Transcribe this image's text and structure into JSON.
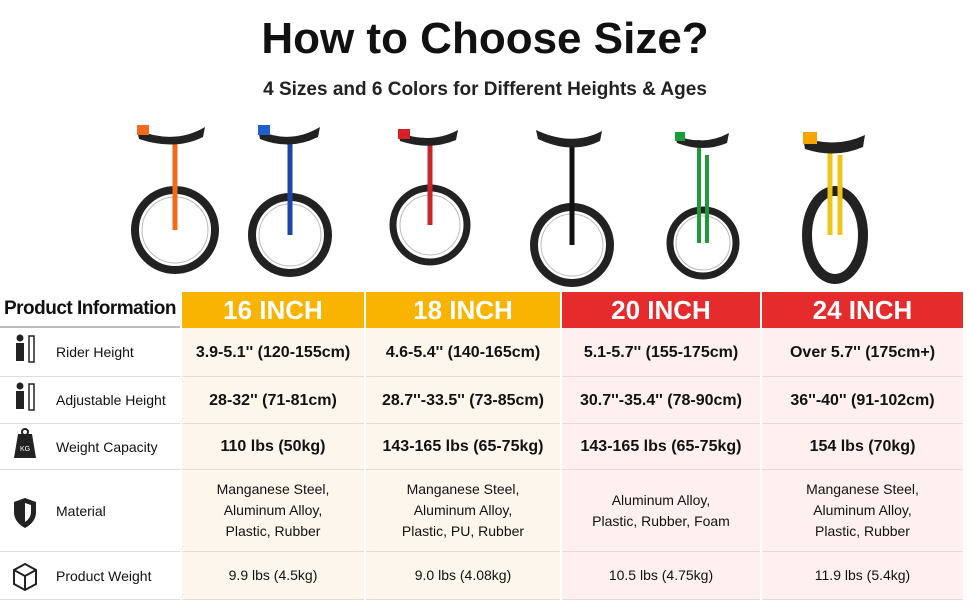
{
  "header": {
    "title": "How to Choose Size?",
    "subtitle": "4 Sizes and 6 Colors for Different Heights & Ages"
  },
  "table": {
    "columns": [
      "Product Information",
      "16 INCH",
      "18 INCH",
      "20 INCH",
      "24 INCH"
    ],
    "rows": [
      {
        "label": "Rider Height",
        "cells": [
          [
            "3.9-5.1'' (120-155cm)"
          ],
          [
            "4.6-5.4'' (140-165cm)"
          ],
          [
            "5.1-5.7'' (155-175cm)"
          ],
          [
            "Over 5.7'' (175cm+)"
          ]
        ]
      },
      {
        "label": "Adjustable Height",
        "cells": [
          [
            "28-32'' (71-81cm)"
          ],
          [
            "28.7''-33.5'' (73-85cm)"
          ],
          [
            "30.7''-35.4'' (78-90cm)"
          ],
          [
            "36''-40'' (91-102cm)"
          ]
        ]
      },
      {
        "label": "Weight Capacity",
        "cells": [
          [
            "110 lbs (50kg)"
          ],
          [
            "143-165 lbs (65-75kg)"
          ],
          [
            "143-165 lbs (65-75kg)"
          ],
          [
            "154 lbs (70kg)"
          ]
        ]
      },
      {
        "label": "Material",
        "cells": [
          [
            "Manganese Steel,",
            "Aluminum Alloy,",
            "Plastic, Rubber"
          ],
          [
            "Manganese Steel,",
            "Aluminum Alloy,",
            "Plastic, PU, Rubber"
          ],
          [
            "Aluminum Alloy,",
            "Plastic, Rubber, Foam"
          ],
          [
            "Manganese Steel,",
            "Aluminum Alloy,",
            "Plastic, Rubber"
          ]
        ]
      },
      {
        "label": "Product Weight",
        "cells": [
          [
            "9.9 lbs (4.5kg)"
          ],
          [
            "9.0 lbs (4.08kg)"
          ],
          [
            "10.5 lbs (4.75kg)"
          ],
          [
            "11.9 lbs (5.4kg)"
          ]
        ]
      }
    ]
  }
}
